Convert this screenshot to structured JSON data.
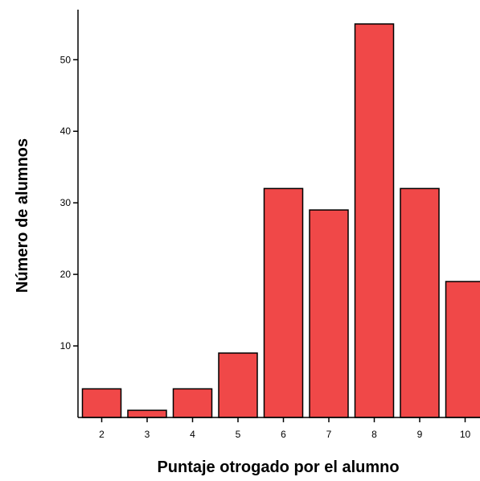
{
  "chart_data": {
    "type": "bar",
    "title": "",
    "xlabel": "Puntaje otrogado por el alumno",
    "ylabel": "Número de alumnos",
    "categories": [
      "2",
      "3",
      "4",
      "5",
      "6",
      "7",
      "8",
      "9",
      "10"
    ],
    "values": [
      4,
      1,
      4,
      9,
      32,
      29,
      55,
      32,
      19
    ],
    "yticks": [
      10,
      20,
      30,
      40,
      50
    ],
    "ylim": [
      0,
      57
    ],
    "grid": false,
    "legend": "none",
    "bar_color": "#f04848",
    "bar_edge_color": "#000000"
  }
}
